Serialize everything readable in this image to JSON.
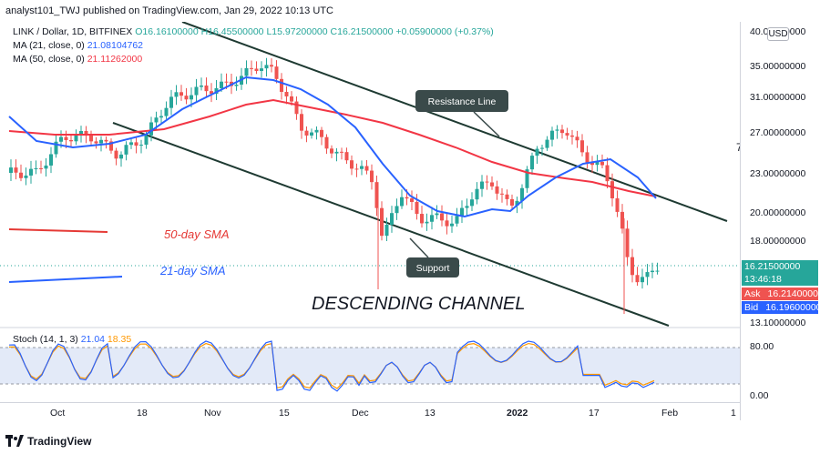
{
  "header": {
    "publisher_line": "analyst101_TWJ published on TradingView.com, Jan 29, 2022 10:13 UTC"
  },
  "legend": {
    "symbol": "LINK / Dollar, 1D, BITFINEX",
    "ohlc_o": "O16.16100000",
    "ohlc_h": "H16.45500000",
    "ohlc_l": "L15.97200000",
    "ohlc_c": "C16.21500000",
    "change": "+0.05900000 (+0.37%)",
    "ma21_label": "MA (21, close, 0)",
    "ma21_value": "21.08104762",
    "ma50_label": "MA (50, close, 0)",
    "ma50_value": "21.11262000"
  },
  "annotations": {
    "resistance": "Resistance Line",
    "support": "Support",
    "sma50": "50-day SMA",
    "sma21": "21-day SMA",
    "channel": "DESCENDING CHANNEL",
    "marker": "7"
  },
  "price_axis": {
    "currency_button": "USD",
    "labels": [
      "40.00000000",
      "35.00000000",
      "31.00000000",
      "27.00000000",
      "23.00000000",
      "20.00000000",
      "18.00000000",
      "13.10000000"
    ],
    "last_price": "16.21500000",
    "countdown": "13:46:18",
    "ask_label": "Ask",
    "ask_value": "16.21400000",
    "bid_label": "Bid",
    "bid_value": "16.19600000"
  },
  "stoch": {
    "label": "Stoch (14, 1, 3)",
    "k_value": "21.04",
    "d_value": "18.35",
    "axis_labels": [
      "80.00",
      "0.00"
    ]
  },
  "time_axis": {
    "labels": [
      "Oct",
      "18",
      "Nov",
      "15",
      "Dec",
      "13",
      "2022",
      "17",
      "Feb",
      "1"
    ]
  },
  "footer": {
    "brand": "TradingView"
  },
  "colors": {
    "up": "#26a69a",
    "down": "#ef5350",
    "ma21": "#2962ff",
    "ma50": "#f23645",
    "channel": "#1e3a32",
    "stoch_k": "#2962ff",
    "stoch_d": "#ff9800",
    "stoch_band": "#e3eaf8"
  }
}
